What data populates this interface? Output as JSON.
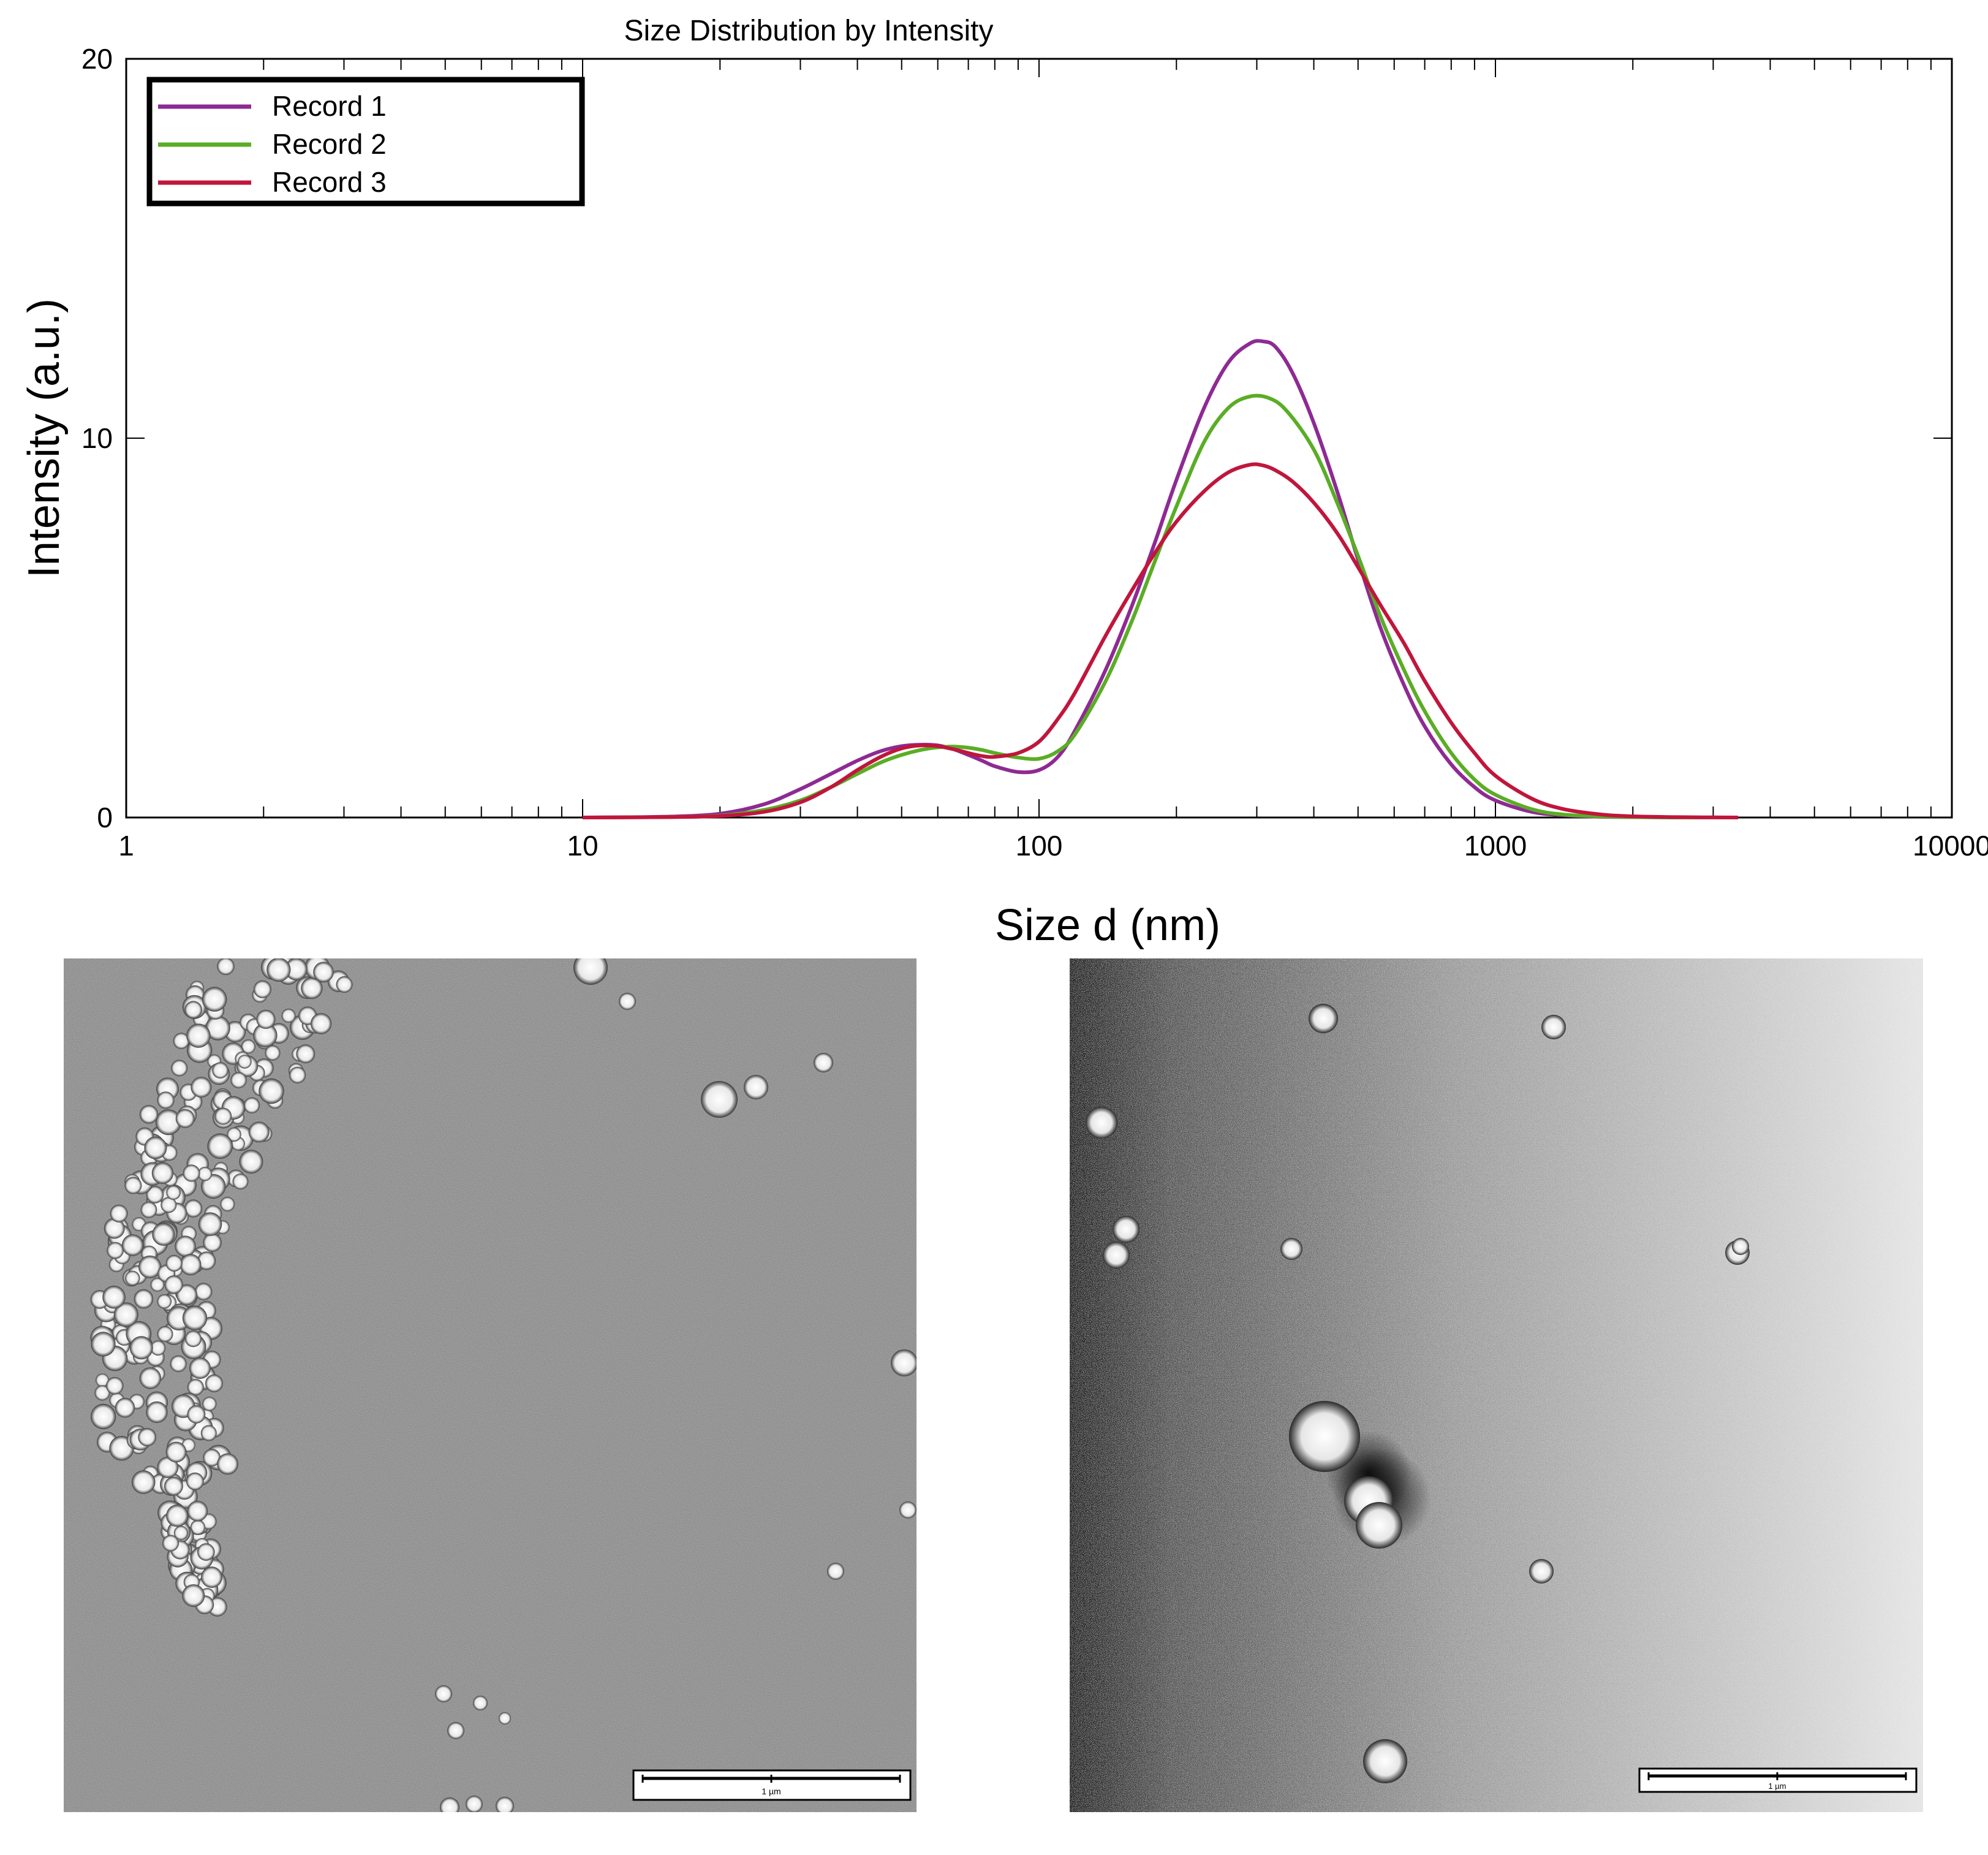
{
  "chart_data": {
    "type": "line",
    "title": "Size Distribution by Intensity",
    "xlabel": "Size d (nm)",
    "ylabel": "Intensity (a.u.)",
    "x_scale": "log",
    "xlim": [
      1,
      10000
    ],
    "ylim": [
      0,
      20
    ],
    "x_ticks": [
      1,
      10,
      100,
      1000,
      10000
    ],
    "x_tick_labels": [
      "1",
      "10",
      "100",
      "1000",
      "10000"
    ],
    "y_ticks": [
      0,
      10,
      20
    ],
    "y_tick_labels": [
      "0",
      "10",
      "20"
    ],
    "legend_position": "top-left",
    "grid": false,
    "series": [
      {
        "name": "Record 1",
        "color": "#8e2a93",
        "x": [
          10,
          15,
          20,
          25,
          30,
          35,
          40,
          45,
          50,
          55,
          60,
          65,
          70,
          75,
          80,
          90,
          100,
          110,
          120,
          140,
          160,
          180,
          200,
          230,
          260,
          290,
          310,
          330,
          360,
          400,
          450,
          500,
          560,
          630,
          700,
          800,
          900,
          1000,
          1200,
          1400,
          1700,
          2000,
          2500,
          3400
        ],
        "y": [
          0,
          0.02,
          0.1,
          0.35,
          0.75,
          1.15,
          1.5,
          1.75,
          1.88,
          1.92,
          1.9,
          1.8,
          1.65,
          1.5,
          1.35,
          1.2,
          1.25,
          1.6,
          2.3,
          3.9,
          5.6,
          7.3,
          8.9,
          10.8,
          12.0,
          12.5,
          12.55,
          12.4,
          11.7,
          10.4,
          8.6,
          6.8,
          5.0,
          3.5,
          2.4,
          1.4,
          0.8,
          0.45,
          0.15,
          0.06,
          0.02,
          0.01,
          0,
          0
        ]
      },
      {
        "name": "Record 2",
        "color": "#5aad25",
        "x": [
          10,
          15,
          20,
          25,
          30,
          35,
          40,
          45,
          50,
          55,
          60,
          65,
          70,
          75,
          80,
          90,
          100,
          110,
          120,
          140,
          160,
          180,
          200,
          230,
          260,
          290,
          320,
          350,
          400,
          450,
          500,
          560,
          630,
          700,
          800,
          900,
          1000,
          1200,
          1400,
          1700,
          2000,
          2500,
          3400
        ],
        "y": [
          0,
          0.01,
          0.05,
          0.2,
          0.45,
          0.8,
          1.15,
          1.45,
          1.65,
          1.78,
          1.85,
          1.87,
          1.84,
          1.78,
          1.7,
          1.58,
          1.55,
          1.75,
          2.2,
          3.6,
          5.2,
          6.8,
          8.2,
          9.9,
          10.8,
          11.1,
          11.05,
          10.7,
          9.7,
          8.3,
          6.9,
          5.3,
          3.9,
          2.8,
          1.7,
          1.0,
          0.6,
          0.22,
          0.08,
          0.03,
          0.01,
          0,
          0
        ]
      },
      {
        "name": "Record 3",
        "color": "#c0163c",
        "x": [
          10,
          15,
          20,
          25,
          30,
          35,
          40,
          45,
          50,
          55,
          60,
          65,
          70,
          75,
          80,
          90,
          100,
          110,
          120,
          140,
          160,
          180,
          200,
          230,
          260,
          290,
          310,
          330,
          360,
          400,
          450,
          500,
          560,
          630,
          700,
          800,
          900,
          1000,
          1200,
          1400,
          1700,
          2000,
          2500,
          3400
        ],
        "y": [
          0,
          0.01,
          0.04,
          0.15,
          0.4,
          0.8,
          1.25,
          1.6,
          1.82,
          1.9,
          1.88,
          1.8,
          1.7,
          1.62,
          1.6,
          1.7,
          2.0,
          2.6,
          3.3,
          4.8,
          6.0,
          7.0,
          7.8,
          8.6,
          9.1,
          9.3,
          9.28,
          9.15,
          8.85,
          8.3,
          7.5,
          6.6,
          5.6,
          4.6,
          3.6,
          2.5,
          1.7,
          1.1,
          0.5,
          0.23,
          0.08,
          0.03,
          0.01,
          0
        ]
      }
    ]
  },
  "images": {
    "left_scale_label": "1 µm",
    "right_scale_label": "1 µm"
  }
}
